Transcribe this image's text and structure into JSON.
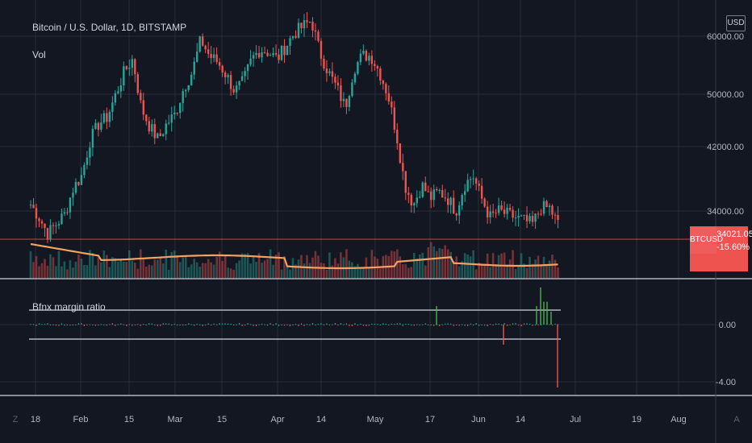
{
  "header": {
    "title": "Bitcoin / U.S. Dollar, 1D, BITSTAMP",
    "volume_label": "Vol",
    "indicator_label": "Bfnx margin ratio",
    "currency": "USD"
  },
  "price_tag": {
    "symbol": "BTCUSD",
    "value": "34021.05",
    "change": "-15.60%"
  },
  "corner_left": "Z",
  "corner_right": "A",
  "colors": {
    "up": "#26a69a",
    "down": "#ef5350",
    "ma": "#f4a261",
    "bg": "#131722",
    "grid": "#2a2e39"
  },
  "chart_data": [
    {
      "type": "candlestick",
      "title": "Bitcoin / U.S. Dollar, 1D, BITSTAMP",
      "ylabel": "USD",
      "ylim": [
        26000,
        64000
      ],
      "yticks": [
        "34000.00",
        "42000.00",
        "50000.00",
        "60000.00"
      ],
      "xticks": [
        "18",
        "Feb",
        "15",
        "Mar",
        "15",
        "Apr",
        "14",
        "May",
        "17",
        "Jun",
        "14",
        "Jul",
        "19",
        "Aug"
      ],
      "last_price": 34021.05,
      "change": "-15.60%",
      "close_approx": [
        35000,
        33000,
        30500,
        32000,
        33500,
        37500,
        39500,
        45000,
        47500,
        48500,
        52000,
        55500,
        57500,
        50000,
        47000,
        45000,
        47500,
        49000,
        53000,
        55500,
        60500,
        58000,
        57000,
        55000,
        52500,
        54000,
        57500,
        59000,
        58500,
        57500,
        59500,
        61500,
        62500,
        63500,
        58500,
        55500,
        53000,
        50000,
        56000,
        58000,
        58000,
        55500,
        52000,
        46000,
        38000,
        35000,
        38000,
        36000,
        37000,
        36000,
        34000,
        38000,
        39500,
        36000,
        33000,
        34000,
        33500,
        33000,
        32500,
        32000,
        34500,
        34500,
        32000
      ],
      "grid": true
    },
    {
      "type": "bar",
      "title": "Bfnx margin ratio",
      "yticks": [
        "0.00",
        "-4.00"
      ],
      "ylim": [
        -4.5,
        2.8
      ],
      "spikes": [
        {
          "x": "May 17",
          "value": 1.3
        },
        {
          "x": "Jun 8",
          "value": -1.4
        },
        {
          "x": "Jun 19",
          "value": 1.3
        },
        {
          "x": "Jun 20",
          "value": 2.6
        },
        {
          "x": "Jun 21",
          "value": 1.6
        },
        {
          "x": "Jun 22",
          "value": 1.6
        },
        {
          "x": "Jun 23",
          "value": 0.9
        },
        {
          "x": "Jun 25",
          "value": -4.4
        }
      ],
      "levels": [
        1.0,
        -1.0
      ],
      "grid": true
    }
  ]
}
